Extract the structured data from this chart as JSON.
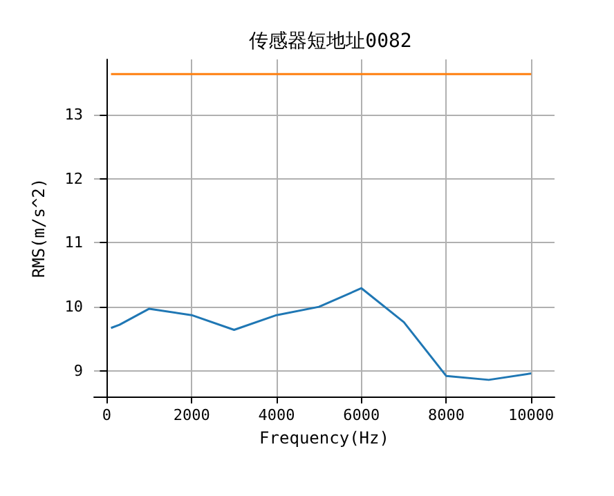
{
  "chart_data": {
    "type": "line",
    "title": "传感器短地址0082",
    "xlabel": "Frequency(Hz)",
    "ylabel": "RMS(m/s^2)",
    "series": [
      {
        "color": "#1f77b4",
        "x": [
          100,
          300,
          1000,
          2000,
          3000,
          4000,
          5000,
          6000,
          7000,
          8000,
          9000,
          10000
        ],
        "values": [
          9.67,
          9.72,
          9.97,
          9.87,
          9.64,
          9.87,
          10.0,
          10.29,
          9.76,
          8.92,
          8.86,
          8.96
        ]
      },
      {
        "color": "#ff7f0e",
        "x": [
          100,
          10000
        ],
        "values": [
          13.63,
          13.63
        ]
      }
    ],
    "xlim": [
      -300,
      10550
    ],
    "xticks": [
      0,
      2000,
      4000,
      6000,
      8000,
      10000
    ],
    "ylim": [
      8.6,
      13.86
    ],
    "yticks": [
      9,
      10,
      11,
      12,
      13
    ],
    "grid": true,
    "marker": "none",
    "line_style": "solid"
  }
}
